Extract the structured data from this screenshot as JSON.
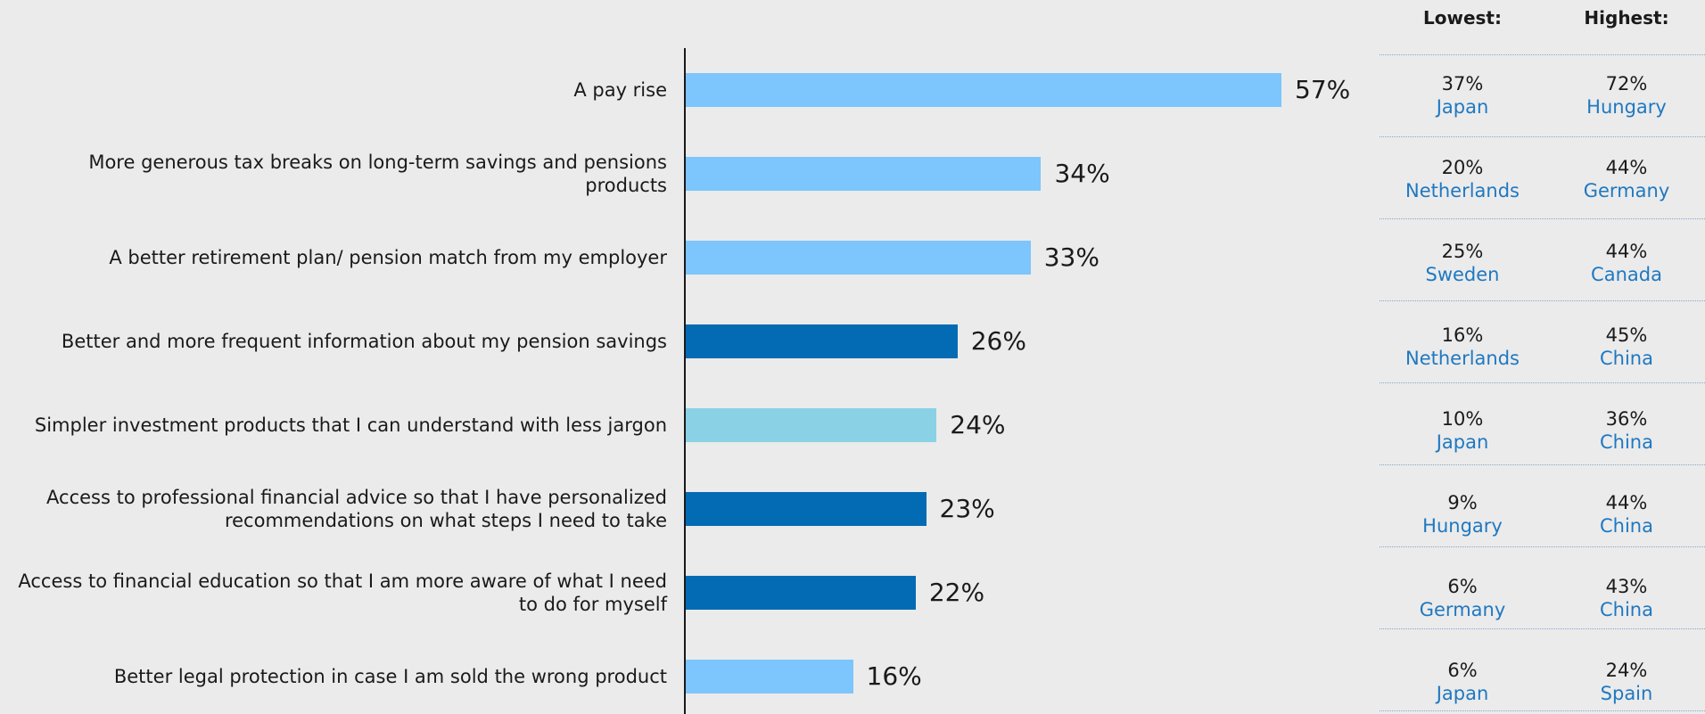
{
  "chart_data": {
    "type": "bar",
    "orientation": "horizontal",
    "categories": [
      "A pay rise",
      "More generous tax breaks on long-term savings and pensions products",
      "A better retirement plan/ pension match from my employer",
      "Better and more frequent information about my pension savings",
      "Simpler investment products that I can understand with less jargon",
      "Access to professional financial advice so that I have personalized recommendations on what steps I need to take",
      "Access to financial education so that I am more aware of what I need to do for myself",
      "Better legal protection in case I am sold the wrong product"
    ],
    "values": [
      57,
      34,
      33,
      26,
      24,
      23,
      22,
      16
    ],
    "value_labels": [
      "57%",
      "34%",
      "33%",
      "26%",
      "24%",
      "23%",
      "22%",
      "16%"
    ],
    "bar_colors": [
      "#7dc5fd",
      "#7dc5fd",
      "#7dc5fd",
      "#036bb4",
      "#8ad1e6",
      "#036bb4",
      "#036bb4",
      "#7dc5fd"
    ],
    "xlim": [
      0,
      57
    ],
    "grid": false,
    "title": "",
    "xlabel": "",
    "ylabel": ""
  },
  "side_table": {
    "lowest_header": "Lowest:",
    "highest_header": "Highest:",
    "rows": [
      {
        "low_pct": "37%",
        "low_country": "Japan",
        "high_pct": "72%",
        "high_country": "Hungary"
      },
      {
        "low_pct": "20%",
        "low_country": "Netherlands",
        "high_pct": "44%",
        "high_country": "Germany"
      },
      {
        "low_pct": "25%",
        "low_country": "Sweden",
        "high_pct": "44%",
        "high_country": "Canada"
      },
      {
        "low_pct": "16%",
        "low_country": "Netherlands",
        "high_pct": "45%",
        "high_country": "China"
      },
      {
        "low_pct": "10%",
        "low_country": "Japan",
        "high_pct": "36%",
        "high_country": "China"
      },
      {
        "low_pct": "9%",
        "low_country": "Hungary",
        "high_pct": "44%",
        "high_country": "China"
      },
      {
        "low_pct": "6%",
        "low_country": "Germany",
        "high_pct": "43%",
        "high_country": "China"
      },
      {
        "low_pct": "6%",
        "low_country": "Japan",
        "high_pct": "24%",
        "high_country": "Spain"
      }
    ]
  }
}
